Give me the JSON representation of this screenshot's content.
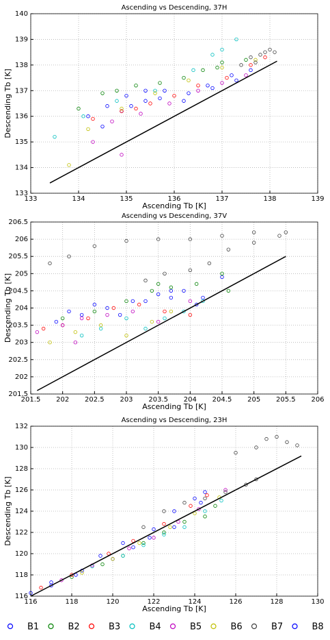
{
  "chart_data": [
    {
      "type": "scatter",
      "title": "Ascending vs Descending, 37H",
      "xlabel": "Ascending  Tb [K]",
      "ylabel": "Descending  Tb [K]",
      "xlim": [
        133,
        139
      ],
      "xticks": [
        133,
        134,
        135,
        136,
        137,
        138,
        139
      ],
      "ylim": [
        133,
        140
      ],
      "yticks": [
        133,
        134,
        135,
        136,
        137,
        138,
        139,
        140
      ],
      "grid": true,
      "reference_line": {
        "color": "#000000",
        "x": [
          133.4,
          138.15
        ],
        "y": [
          133.4,
          138.15
        ]
      },
      "series": [
        {
          "color": "#0000ff",
          "x": [
            134.2,
            134.6,
            135.0,
            135.4,
            135.8,
            136.3,
            136.7,
            137.2,
            137.6,
            134.9
          ],
          "y": [
            136.0,
            136.4,
            136.8,
            136.6,
            137.0,
            136.9,
            137.2,
            137.6,
            137.8,
            136.2
          ]
        },
        {
          "color": "#008000",
          "x": [
            134.0,
            134.5,
            135.2,
            135.7,
            136.2,
            136.6,
            137.0,
            137.5,
            134.8,
            136.9
          ],
          "y": [
            136.3,
            136.9,
            137.2,
            137.3,
            137.5,
            137.8,
            138.1,
            138.2,
            137.0,
            137.9
          ]
        },
        {
          "color": "#ff0000",
          "x": [
            134.3,
            134.9,
            135.5,
            136.0,
            136.5,
            137.1,
            137.6,
            137.9,
            135.2
          ],
          "y": [
            135.9,
            136.2,
            136.5,
            136.8,
            137.2,
            137.5,
            138.0,
            138.3,
            136.3
          ]
        },
        {
          "color": "#00bfbf",
          "x": [
            133.5,
            134.1,
            134.8,
            135.6,
            136.4,
            137.0,
            137.3,
            136.8
          ],
          "y": [
            135.2,
            136.0,
            136.6,
            137.0,
            137.8,
            138.6,
            139.0,
            138.4
          ]
        },
        {
          "color": "#bf00bf",
          "x": [
            134.3,
            134.7,
            135.3,
            135.9,
            136.5,
            137.0,
            137.5,
            134.9
          ],
          "y": [
            135.0,
            135.8,
            136.1,
            136.5,
            137.0,
            137.3,
            137.6,
            134.5
          ]
        },
        {
          "color": "#bfbf00",
          "x": [
            133.8,
            134.2,
            134.9,
            135.6,
            136.3,
            137.0,
            137.7
          ],
          "y": [
            134.1,
            135.5,
            136.3,
            136.9,
            137.4,
            137.9,
            138.2
          ]
        },
        {
          "color": "#404040",
          "x": [
            137.4,
            137.6,
            137.8,
            137.9,
            138.0,
            138.1,
            137.7
          ],
          "y": [
            138.0,
            138.3,
            138.4,
            138.5,
            138.6,
            138.5,
            138.1
          ]
        },
        {
          "color": "#0000ff",
          "x": [
            134.5,
            135.1,
            135.7,
            136.2,
            136.8,
            137.3,
            135.4
          ],
          "y": [
            135.6,
            136.4,
            136.7,
            136.6,
            137.1,
            137.4,
            137.0
          ]
        }
      ]
    },
    {
      "type": "scatter",
      "title": "Ascending vs Descending, 37V",
      "xlabel": "Ascending  Tb [K]",
      "ylabel": "Descending  Tb [K]",
      "xlim": [
        201.5,
        206
      ],
      "xticks": [
        201.5,
        202,
        202.5,
        203,
        203.5,
        204,
        204.5,
        205,
        205.5,
        206
      ],
      "ylim": [
        201.5,
        206.5
      ],
      "yticks": [
        201.5,
        202,
        202.5,
        203,
        203.5,
        204,
        204.5,
        205,
        205.5,
        206,
        206.5
      ],
      "grid": true,
      "reference_line": {
        "color": "#000000",
        "x": [
          201.6,
          205.5
        ],
        "y": [
          201.6,
          205.5
        ]
      },
      "series": [
        {
          "color": "#0000ff",
          "x": [
            201.9,
            202.3,
            202.7,
            203.1,
            203.5,
            203.9,
            204.2,
            204.5,
            203.7
          ],
          "y": [
            203.6,
            203.8,
            204.0,
            204.2,
            204.4,
            204.5,
            204.3,
            204.9,
            204.5
          ]
        },
        {
          "color": "#008000",
          "x": [
            202.0,
            202.5,
            203.0,
            203.4,
            203.7,
            204.1,
            204.5,
            204.6,
            203.5
          ],
          "y": [
            203.7,
            203.9,
            204.2,
            204.5,
            204.6,
            204.7,
            205.0,
            204.5,
            204.7
          ]
        },
        {
          "color": "#ff0000",
          "x": [
            201.7,
            202.0,
            202.4,
            202.8,
            203.2,
            203.6,
            204.0
          ],
          "y": [
            203.4,
            203.5,
            203.7,
            204.0,
            204.1,
            203.9,
            203.8
          ]
        },
        {
          "color": "#00bfbf",
          "x": [
            202.3,
            202.6,
            203.0,
            203.3,
            203.6,
            203.9,
            204.2
          ],
          "y": [
            203.2,
            203.4,
            203.7,
            203.4,
            203.7,
            203.9,
            204.2
          ]
        },
        {
          "color": "#bf00bf",
          "x": [
            201.6,
            202.0,
            202.3,
            202.7,
            203.1,
            203.5,
            204.0,
            202.2
          ],
          "y": [
            203.3,
            203.5,
            203.7,
            203.8,
            203.9,
            203.6,
            204.2,
            203.0
          ]
        },
        {
          "color": "#bfbf00",
          "x": [
            201.8,
            202.2,
            202.6,
            203.0,
            203.4,
            203.7
          ],
          "y": [
            203.0,
            203.3,
            203.5,
            203.2,
            203.6,
            203.9
          ]
        },
        {
          "color": "#404040",
          "x": [
            201.8,
            202.1,
            202.5,
            203.0,
            203.5,
            204.0,
            204.5,
            205.0,
            205.5,
            203.3,
            203.6,
            204.0,
            204.3,
            204.6,
            205.0,
            205.4
          ],
          "y": [
            205.3,
            205.5,
            205.8,
            205.95,
            206.0,
            206.0,
            206.1,
            206.2,
            206.2,
            204.8,
            205.0,
            205.1,
            205.3,
            205.7,
            205.9,
            206.1
          ]
        },
        {
          "color": "#0000ff",
          "x": [
            202.1,
            202.5,
            202.9,
            203.3,
            203.7,
            204.1
          ],
          "y": [
            203.9,
            204.1,
            203.8,
            204.2,
            204.3,
            204.1
          ]
        }
      ]
    },
    {
      "type": "scatter",
      "title": "Ascending vs Descending, 23H",
      "xlabel": "Ascending  Tb [K]",
      "ylabel": "Descending  Tb [K]",
      "xlim": [
        116,
        130
      ],
      "xticks": [
        116,
        118,
        120,
        122,
        124,
        126,
        128,
        130
      ],
      "ylim": [
        116,
        132
      ],
      "yticks": [
        116,
        118,
        120,
        122,
        124,
        126,
        128,
        130,
        132
      ],
      "grid": true,
      "reference_line": {
        "color": "#000000",
        "x": [
          116,
          129.2
        ],
        "y": [
          116,
          129.2
        ]
      },
      "series": [
        {
          "color": "#0000ff",
          "x": [
            117.0,
            118.5,
            120.0,
            121.0,
            122.0,
            123.0,
            124.0,
            124.5
          ],
          "y": [
            117.3,
            118.4,
            119.5,
            120.6,
            122.3,
            124.0,
            125.2,
            125.8
          ]
        },
        {
          "color": "#008000",
          "x": [
            118.0,
            119.5,
            120.5,
            121.5,
            122.5,
            123.5,
            124.5,
            125.0
          ],
          "y": [
            117.8,
            119.0,
            119.8,
            121.0,
            122.0,
            123.0,
            123.5,
            124.5
          ]
        },
        {
          "color": "#ff0000",
          "x": [
            116.5,
            118.0,
            119.8,
            121.0,
            122.5,
            123.8,
            124.6
          ],
          "y": [
            116.8,
            118.0,
            120.0,
            121.2,
            122.8,
            124.5,
            125.5
          ]
        },
        {
          "color": "#00bfbf",
          "x": [
            119.0,
            120.5,
            121.5,
            122.5,
            123.5,
            124.5,
            125.3
          ],
          "y": [
            118.8,
            119.8,
            120.8,
            121.8,
            122.5,
            124.0,
            125.0
          ]
        },
        {
          "color": "#bf00bf",
          "x": [
            117.5,
            119.0,
            120.8,
            122.0,
            123.2,
            124.2,
            125.5
          ],
          "y": [
            117.5,
            118.9,
            120.5,
            121.5,
            123.0,
            124.2,
            126.0
          ]
        },
        {
          "color": "#bfbf00",
          "x": [
            118.5,
            120.0,
            121.3,
            122.8,
            124.0,
            125.2
          ],
          "y": [
            118.2,
            119.5,
            121.0,
            122.5,
            123.8,
            125.3
          ]
        },
        {
          "color": "#404040",
          "x": [
            121.5,
            122.5,
            123.5,
            124.5,
            125.5,
            126.5,
            127.0,
            127.5,
            128.0,
            128.5,
            129.0,
            126.0,
            127.0
          ],
          "y": [
            122.5,
            124.0,
            124.8,
            125.2,
            125.8,
            126.5,
            130.0,
            130.8,
            131.0,
            130.5,
            130.2,
            129.5,
            127.0
          ]
        },
        {
          "color": "#0000ff",
          "x": [
            116.0,
            117.0,
            118.2,
            119.4,
            120.5,
            121.8,
            123.0,
            124.3
          ],
          "y": [
            116.3,
            117.0,
            118.0,
            119.8,
            121.0,
            121.5,
            122.5,
            124.8
          ]
        }
      ]
    }
  ],
  "legend": [
    "B1",
    "B2",
    "B3",
    "B4",
    "B5",
    "B6",
    "B7",
    "B8"
  ]
}
